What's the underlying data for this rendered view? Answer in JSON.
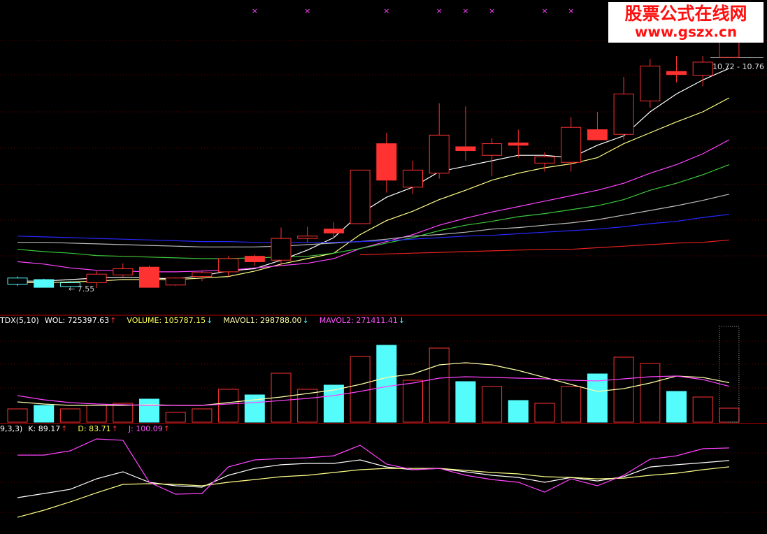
{
  "chart_data": [
    {
      "type": "candlestick",
      "open": [
        7.68,
        7.66,
        7.62,
        7.62,
        7.72,
        7.82,
        7.59,
        7.7,
        7.76,
        7.96,
        7.91,
        8.19,
        8.31,
        8.38,
        9.41,
        8.85,
        9.03,
        9.37,
        9.26,
        9.42,
        9.16,
        9.17,
        9.59,
        9.53,
        9.96,
        10.34,
        10.29,
        10.52
      ],
      "high": [
        7.7,
        7.67,
        7.64,
        7.77,
        7.87,
        7.84,
        7.69,
        7.78,
        7.96,
        7.98,
        8.33,
        8.34,
        8.4,
        9.07,
        9.55,
        9.19,
        9.93,
        9.89,
        9.48,
        9.59,
        9.3,
        9.75,
        9.82,
        10.27,
        10.5,
        10.54,
        10.54,
        10.86
      ],
      "low": [
        7.58,
        7.56,
        7.56,
        7.55,
        7.7,
        7.56,
        7.58,
        7.64,
        7.7,
        7.84,
        7.84,
        8.14,
        8.2,
        8.38,
        8.78,
        8.76,
        8.96,
        9.19,
        8.99,
        9.23,
        9.05,
        9.05,
        9.46,
        9.46,
        9.87,
        10.2,
        10.15,
        10.52
      ],
      "close": [
        7.6,
        7.56,
        7.57,
        7.73,
        7.8,
        7.56,
        7.68,
        7.75,
        7.93,
        7.89,
        8.19,
        8.22,
        8.26,
        9.07,
        8.94,
        9.07,
        9.52,
        9.32,
        9.41,
        9.39,
        9.24,
        9.62,
        9.46,
        10.05,
        10.41,
        10.3,
        10.46,
        10.76
      ],
      "fills": [
        "none",
        "#54fcfc",
        "none",
        "none",
        "none",
        "#ff3232",
        "none",
        "none",
        "none",
        "#ff3232",
        "none",
        "none",
        "#ff3232",
        "none",
        "#ff3232",
        "none",
        "none",
        "#ff3232",
        "none",
        "#ff3232",
        "none",
        "none",
        "#ff3232",
        "none",
        "none",
        "#ff3232",
        "none",
        "none"
      ],
      "strokes": [
        "#54fcfc",
        "#54fcfc",
        "#54fcfc",
        "#ff3232",
        "#ff3232",
        "#ff3232",
        "#ff3232",
        "#ff3232",
        "#ff3232",
        "#ff3232",
        "#ff3232",
        "#ff3232",
        "#ff3232",
        "#ff3232",
        "#ff3232",
        "#ff3232",
        "#ff3232",
        "#ff3232",
        "#ff3232",
        "#ff3232",
        "#ff3232",
        "#ff3232",
        "#ff3232",
        "#ff3232",
        "#ff3232",
        "#ff3232",
        "#ff3232",
        "#ff3232"
      ],
      "lines": [
        {
          "color": "#ffffff",
          "values": [
            7.64,
            7.64,
            7.66,
            7.68,
            7.69,
            7.68,
            7.67,
            7.71,
            7.77,
            7.8,
            7.91,
            8.04,
            8.2,
            8.51,
            8.72,
            8.85,
            9.05,
            9.12,
            9.19,
            9.26,
            9.26,
            9.23,
            9.39,
            9.51,
            9.82,
            10.05,
            10.23,
            10.38
          ]
        },
        {
          "color": "#ffff88",
          "values": [
            7.62,
            7.62,
            7.63,
            7.64,
            7.66,
            7.66,
            7.66,
            7.68,
            7.7,
            7.77,
            7.86,
            7.93,
            8.0,
            8.24,
            8.42,
            8.54,
            8.69,
            8.81,
            8.94,
            9.03,
            9.1,
            9.15,
            9.23,
            9.41,
            9.55,
            9.69,
            9.82,
            10.0
          ]
        },
        {
          "color": "#ff44ff",
          "values": [
            7.89,
            7.86,
            7.81,
            7.78,
            7.77,
            7.76,
            7.76,
            7.77,
            7.78,
            7.81,
            7.84,
            7.87,
            7.93,
            8.06,
            8.15,
            8.24,
            8.36,
            8.45,
            8.53,
            8.6,
            8.67,
            8.74,
            8.81,
            8.9,
            9.03,
            9.14,
            9.28,
            9.46
          ]
        },
        {
          "color": "#3cc83c",
          "values": [
            8.05,
            8.02,
            8.0,
            7.97,
            7.96,
            7.95,
            7.94,
            7.93,
            7.93,
            7.94,
            7.95,
            7.96,
            8.0,
            8.06,
            8.13,
            8.2,
            8.29,
            8.36,
            8.41,
            8.47,
            8.51,
            8.56,
            8.61,
            8.69,
            8.81,
            8.9,
            9.01,
            9.14
          ]
        },
        {
          "color": "#bbbbbb",
          "values": [
            8.14,
            8.14,
            8.13,
            8.12,
            8.11,
            8.1,
            8.09,
            8.08,
            8.08,
            8.08,
            8.09,
            8.11,
            8.13,
            8.15,
            8.18,
            8.22,
            8.24,
            8.27,
            8.31,
            8.33,
            8.36,
            8.39,
            8.43,
            8.49,
            8.55,
            8.61,
            8.68,
            8.76
          ]
        },
        {
          "color": "#2828ff",
          "values": [
            8.22,
            8.21,
            8.2,
            8.19,
            8.18,
            8.17,
            8.16,
            8.15,
            8.15,
            8.14,
            8.14,
            8.14,
            8.14,
            8.15,
            8.16,
            8.18,
            8.2,
            8.22,
            8.23,
            8.25,
            8.27,
            8.29,
            8.31,
            8.34,
            8.38,
            8.41,
            8.46,
            8.5
          ]
        },
        {
          "color": "#e82020",
          "values": [
            null,
            null,
            null,
            null,
            null,
            null,
            null,
            null,
            null,
            null,
            null,
            null,
            null,
            7.98,
            7.99,
            8.0,
            8.01,
            8.02,
            8.03,
            8.04,
            8.05,
            8.05,
            8.07,
            8.09,
            8.11,
            8.13,
            8.14,
            8.17
          ]
        }
      ],
      "signals": [
        null,
        null,
        null,
        null,
        null,
        null,
        null,
        null,
        null,
        "×",
        null,
        "×",
        null,
        null,
        "×",
        null,
        "×",
        "×",
        "×",
        null,
        "×",
        "×",
        null,
        null,
        null,
        null,
        null,
        null
      ],
      "signal_color": "#ff44ff",
      "ylim": [
        7.21,
        11.26
      ],
      "low_label": "← 7.55",
      "hover_label": "10.72 - 10.76"
    },
    {
      "type": "volume",
      "title": "TDX(5,10)",
      "legend": [
        {
          "text": "WOL: 725397.63",
          "color": "#ffffff",
          "arrow": "↑",
          "arrow_color": "#ff3232"
        },
        {
          "text": "VOLUME: 105787.15",
          "color": "#ffff55",
          "arrow": "↓",
          "arrow_color": "#54fcfc"
        },
        {
          "text": "MAVOL1: 298788.00",
          "color": "#ffffaa",
          "arrow": "↓",
          "arrow_color": "#54fcfc"
        },
        {
          "text": "MAVOL2: 271411.41",
          "color": "#ff55ff",
          "arrow": "↓",
          "arrow_color": "#54fcfc"
        }
      ],
      "values": [
        100500,
        127000,
        100500,
        127000,
        142800,
        174600,
        74100,
        100500,
        248600,
        206300,
        370300,
        248600,
        280400,
        497300,
        581900,
        317400,
        560700,
        306800,
        269800,
        164000,
        142800,
        269800,
        365000,
        492000,
        444400,
        232800,
        190400,
        105787.15
      ],
      "fills": [
        "none",
        "#54fcfc",
        "none",
        "none",
        "none",
        "#54fcfc",
        "none",
        "none",
        "none",
        "#54fcfc",
        "none",
        "none",
        "#54fcfc",
        "none",
        "#54fcfc",
        "none",
        "none",
        "#54fcfc",
        "none",
        "#54fcfc",
        "none",
        "none",
        "#54fcfc",
        "none",
        "none",
        "#54fcfc",
        "none",
        "none"
      ],
      "strokes": [
        "#ff3232",
        "#54fcfc",
        "#ff3232",
        "#ff3232",
        "#ff3232",
        "#54fcfc",
        "#ff3232",
        "#ff3232",
        "#ff3232",
        "#54fcfc",
        "#ff3232",
        "#ff3232",
        "#54fcfc",
        "#ff3232",
        "#54fcfc",
        "#ff3232",
        "#ff3232",
        "#54fcfc",
        "#ff3232",
        "#54fcfc",
        "#ff3232",
        "#ff3232",
        "#54fcfc",
        "#ff3232",
        "#ff3232",
        "#54fcfc",
        "#ff3232",
        "#ff3232"
      ],
      "lines": [
        {
          "color": "#ffffaa",
          "values": [
            153400,
            137500,
            127000,
            127000,
            127000,
            132300,
            127000,
            127000,
            148100,
            169300,
            190400,
            216900,
            243300,
            285700,
            338600,
            365000,
            433800,
            449700,
            433800,
            391500,
            338600,
            285700,
            232800,
            253900,
            296200,
            349100,
            338600,
            298788.0
          ]
        },
        {
          "color": "#ff44ff",
          "values": [
            201000,
            169300,
            148100,
            137500,
            132300,
            127000,
            127000,
            127000,
            137500,
            148100,
            164000,
            179900,
            201000,
            232800,
            269800,
            296200,
            333300,
            343900,
            338600,
            333300,
            328000,
            317400,
            312100,
            328000,
            343900,
            349100,
            322700,
            271411.41
          ]
        }
      ],
      "wol": 725397.63,
      "ylim": [
        0,
        804000
      ]
    },
    {
      "type": "line",
      "title": "9,3,3)",
      "legend": [
        {
          "text": "K: 89.17",
          "color": "#ffffff",
          "arrow": "↑",
          "arrow_color": "#ff3232"
        },
        {
          "text": "D: 83.71",
          "color": "#ffff55",
          "arrow": "↑",
          "arrow_color": "#ff3232"
        },
        {
          "text": "J: 100.09",
          "color": "#ff55ff",
          "arrow": "↑",
          "arrow_color": "#ff3232"
        }
      ],
      "series": [
        {
          "color": "#ffffff",
          "values": [
            57.0,
            60.6,
            64.2,
            73.3,
            79.4,
            70.3,
            67.3,
            66.1,
            76.4,
            82.4,
            85.5,
            86.7,
            86.7,
            89.7,
            83.6,
            81.2,
            82.4,
            79.4,
            76.4,
            74.5,
            70.3,
            74.5,
            71.5,
            75.2,
            83.6,
            85.5,
            87.3,
            89.17
          ]
        },
        {
          "color": "#ffff88",
          "values": [
            40.0,
            46.1,
            53.3,
            61.2,
            68.5,
            69.1,
            68.5,
            67.3,
            70.3,
            72.7,
            75.2,
            76.4,
            78.8,
            81.2,
            82.4,
            82.4,
            82.4,
            80.6,
            78.8,
            77.6,
            75.2,
            74.5,
            73.3,
            73.9,
            76.4,
            78.2,
            81.2,
            83.71
          ]
        },
        {
          "color": "#ff44ff",
          "values": [
            93.9,
            93.9,
            97.6,
            107.9,
            106.7,
            70.3,
            60.0,
            60.6,
            83.6,
            89.7,
            90.9,
            91.5,
            93.3,
            102.4,
            86.1,
            81.2,
            82.4,
            76.4,
            72.7,
            70.3,
            61.8,
            73.3,
            67.3,
            76.4,
            90.3,
            93.3,
            99.4,
            100.09
          ]
        }
      ],
      "ylim": [
        25.5,
        120.6
      ]
    }
  ],
  "watermark": {
    "line1": "股票公式在线网",
    "line2": "www.gszx.cn"
  }
}
